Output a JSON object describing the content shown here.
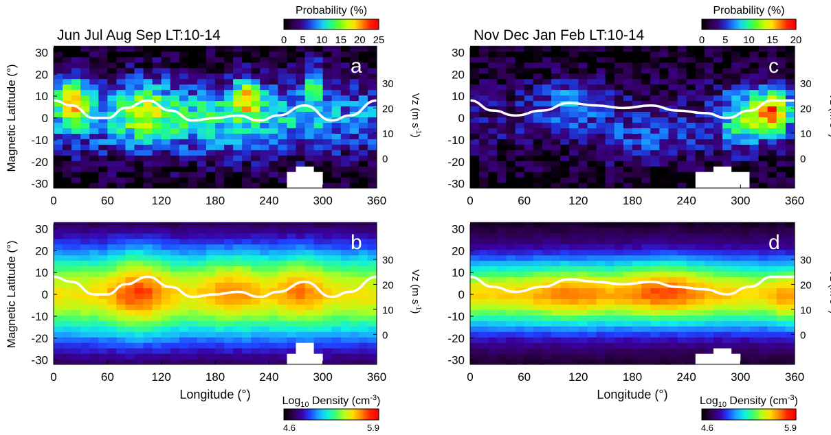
{
  "colorbars": [
    {
      "title": "Probability (%)",
      "ticks": [
        "0",
        "5",
        "10",
        "15",
        "20",
        "25"
      ],
      "max": 25
    },
    {
      "title": "Probability (%)",
      "ticks": [
        "0",
        "5",
        "10",
        "15",
        "20"
      ],
      "max": 20
    },
    {
      "title_base": "Log",
      "title_sub": "10",
      "title_rest": " Density (cm",
      "title_sup": "-3",
      "title_close": ")",
      "ticks": [
        "4.6",
        "5.9"
      ]
    },
    {
      "title_base": "Log",
      "title_sub": "10",
      "title_rest": " Density (cm",
      "title_sup": "-3",
      "title_close": ")",
      "ticks": [
        "4.6",
        "5.9"
      ]
    }
  ],
  "axis_text": {
    "ylabel": "Magnetic Latitude (°)",
    "xlabel": "Longitude (°)",
    "vz_label_main": "Vz (m s",
    "vz_label_sup": "-1",
    "vz_label_close": ")"
  },
  "colors": {
    "probability_scale": [
      "#000000",
      "#2a0045",
      "#3a0080",
      "#2030d0",
      "#1a7fff",
      "#18d6f0",
      "#20ff80",
      "#60ff20",
      "#c8ff00",
      "#ffe000",
      "#ff8000",
      "#ff2000",
      "#ff0000"
    ],
    "density_scale": [
      "#000000",
      "#300050",
      "#3a00a0",
      "#2040ff",
      "#1aa8ff",
      "#10f0e0",
      "#40ff70",
      "#b0ff20",
      "#ffe000",
      "#ff8c00",
      "#ff2800",
      "#ff0000"
    ],
    "mask": "#ffffff",
    "vz_curve": "#ffffff"
  },
  "chart_data": [
    {
      "panel_label": "a",
      "title": "Jun Jul Aug Sep   LT:10-14",
      "type": "heatmap",
      "quantity": "probability",
      "x_ticks": [
        "0",
        "60",
        "120",
        "180",
        "240",
        "300",
        "360"
      ],
      "y_ticks": [
        "30",
        "20",
        "10",
        "0",
        "-10",
        "-20",
        "-30"
      ],
      "vz_ticks": [
        "30",
        "20",
        "10",
        "0"
      ],
      "xlim": [
        0,
        360
      ],
      "ylim": [
        -32,
        32
      ],
      "vz_lim": [
        -12,
        44
      ],
      "features": [
        {
          "lon": 20,
          "lat": 8,
          "wlon": 18,
          "wlat": 10,
          "amp": 14
        },
        {
          "lon": 100,
          "lat": 5,
          "wlon": 30,
          "wlat": 14,
          "amp": 7
        },
        {
          "lon": 215,
          "lat": 10,
          "wlon": 15,
          "wlat": 8,
          "amp": 12
        },
        {
          "lon": 290,
          "lat": 18,
          "wlon": 10,
          "wlat": 10,
          "amp": 9
        },
        {
          "lon": 180,
          "lat": 0,
          "wlon": 140,
          "wlat": 16,
          "amp": 5
        }
      ],
      "base": 6,
      "noise": 6,
      "lat_decay": 18,
      "seed": 11,
      "vz_curve": {
        "x": [
          0,
          20,
          45,
          60,
          80,
          105,
          130,
          155,
          180,
          205,
          230,
          250,
          280,
          310,
          330,
          360
        ],
        "y": [
          23,
          21,
          16,
          16,
          20,
          23,
          19,
          15,
          16,
          17,
          15,
          17,
          21,
          15,
          17,
          23
        ]
      },
      "mask_lon": [
        [
          258,
          305
        ]
      ],
      "mask_lat_max": -24
    },
    {
      "panel_label": "b",
      "title": "",
      "type": "heatmap",
      "quantity": "log10_density",
      "x_ticks": [
        "0",
        "60",
        "120",
        "180",
        "240",
        "300",
        "360"
      ],
      "y_ticks": [
        "30",
        "20",
        "10",
        "0",
        "-10",
        "-20",
        "-30"
      ],
      "vz_ticks": [
        "30",
        "20",
        "10",
        "0"
      ],
      "xlim": [
        0,
        360
      ],
      "ylim": [
        -32,
        32
      ],
      "vz_lim": [
        -12,
        44
      ],
      "features": [
        {
          "lon": 95,
          "lat": 2,
          "wlon": 30,
          "wlat": 20,
          "amp": 2.5
        },
        {
          "lon": 200,
          "lat": 4,
          "wlon": 30,
          "wlat": 16,
          "amp": 1.6
        },
        {
          "lon": 275,
          "lat": 4,
          "wlon": 25,
          "wlat": 16,
          "amp": 1.8
        }
      ],
      "base": 7.5,
      "noise": 0.6,
      "lat_decay": 22,
      "seed": 23,
      "vz_curve": {
        "x": [
          0,
          20,
          45,
          60,
          80,
          105,
          130,
          155,
          180,
          205,
          230,
          250,
          280,
          310,
          330,
          360
        ],
        "y": [
          23,
          21,
          16,
          16,
          20,
          23,
          19,
          15,
          16,
          17,
          15,
          17,
          21,
          15,
          17,
          23
        ]
      },
      "mask_lon": [
        [
          255,
          300
        ]
      ],
      "mask_lat_max": -26
    },
    {
      "panel_label": "c",
      "title": "Nov Dec Jan Feb   LT:10-14",
      "type": "heatmap",
      "quantity": "probability",
      "x_ticks": [
        "0",
        "60",
        "120",
        "180",
        "240",
        "300",
        "360"
      ],
      "y_ticks": [
        "30",
        "20",
        "10",
        "0",
        "-10",
        "-20",
        "-30"
      ],
      "vz_ticks": [
        "30",
        "20",
        "10",
        "0"
      ],
      "xlim": [
        0,
        360
      ],
      "ylim": [
        -32,
        32
      ],
      "vz_lim": [
        -12,
        44
      ],
      "features": [
        {
          "lon": 335,
          "lat": 3,
          "wlon": 22,
          "wlat": 10,
          "amp": 14
        },
        {
          "lon": 300,
          "lat": 0,
          "wlon": 25,
          "wlat": 14,
          "amp": 7
        },
        {
          "lon": 110,
          "lat": 8,
          "wlon": 40,
          "wlat": 12,
          "amp": 4
        },
        {
          "lon": 200,
          "lat": -10,
          "wlon": 60,
          "wlat": 12,
          "amp": 3
        }
      ],
      "base": 2.5,
      "noise": 4.5,
      "lat_decay": 18,
      "seed": 37,
      "vz_curve": {
        "x": [
          0,
          25,
          50,
          80,
          110,
          140,
          170,
          200,
          230,
          260,
          285,
          310,
          335,
          360
        ],
        "y": [
          23,
          19,
          17,
          19,
          22,
          21,
          20,
          21,
          19,
          18,
          16,
          19,
          23,
          23
        ]
      },
      "mask_lon": [
        [
          252,
          310
        ]
      ],
      "mask_lat_max": -24
    },
    {
      "panel_label": "d",
      "title": "",
      "type": "heatmap",
      "quantity": "log10_density",
      "x_ticks": [
        "0",
        "60",
        "120",
        "180",
        "240",
        "300",
        "360"
      ],
      "y_ticks": [
        "30",
        "20",
        "10",
        "0",
        "-10",
        "-20",
        "-30"
      ],
      "vz_ticks": [
        "30",
        "20",
        "10",
        "0"
      ],
      "xlim": [
        0,
        360
      ],
      "ylim": [
        -32,
        32
      ],
      "vz_lim": [
        -12,
        44
      ],
      "features": [
        {
          "lon": 215,
          "lat": 4,
          "wlon": 45,
          "wlat": 14,
          "amp": 2.2
        },
        {
          "lon": 110,
          "lat": 0,
          "wlon": 40,
          "wlat": 14,
          "amp": 1.4
        },
        {
          "lon": 350,
          "lat": -4,
          "wlon": 14,
          "wlat": 12,
          "amp": 1.2
        }
      ],
      "base": 7.8,
      "noise": 0.5,
      "lat_decay": 16,
      "seed": 51,
      "vz_curve": {
        "x": [
          0,
          25,
          50,
          80,
          110,
          140,
          170,
          200,
          230,
          260,
          285,
          310,
          335,
          360
        ],
        "y": [
          23,
          19,
          17,
          19,
          22,
          21,
          20,
          21,
          19,
          18,
          16,
          19,
          23,
          23
        ]
      },
      "mask_lon": [
        [
          250,
          305
        ]
      ],
      "mask_lat_max": -27
    }
  ]
}
